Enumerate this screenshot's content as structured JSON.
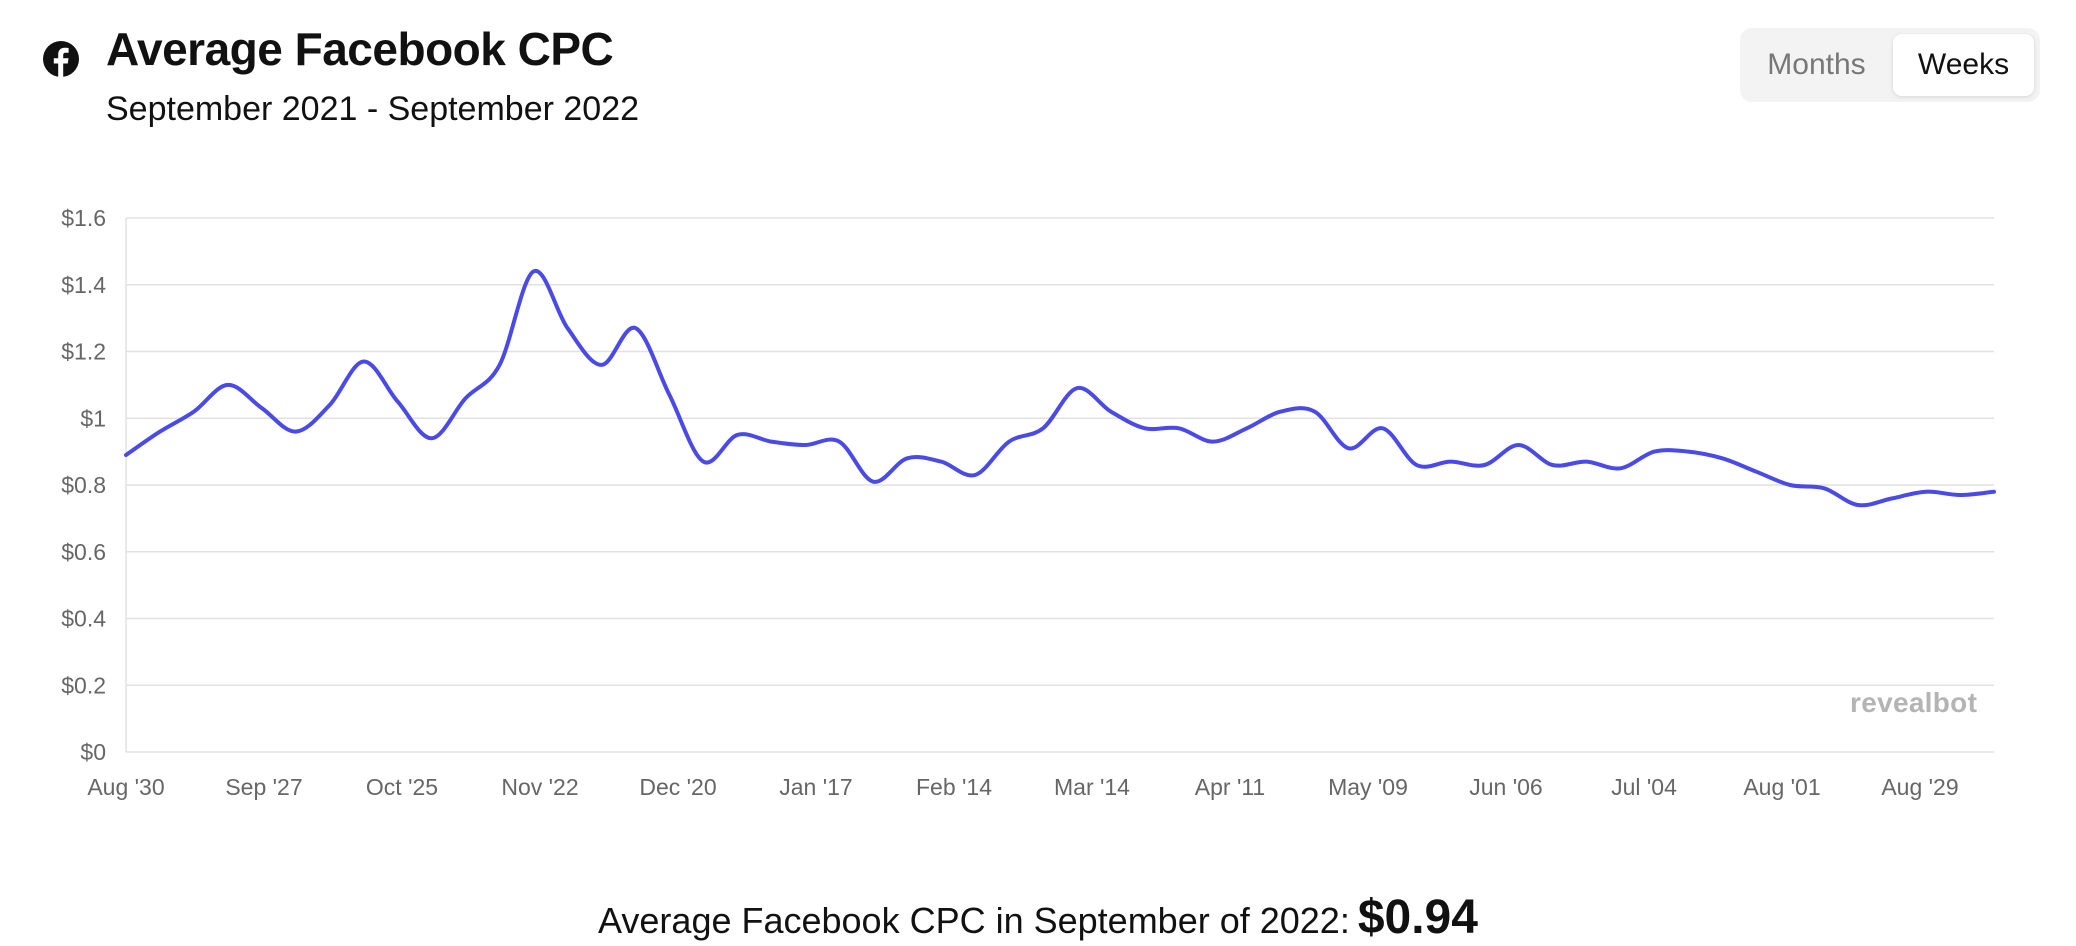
{
  "header": {
    "icon": "facebook-icon",
    "title": "Average Facebook CPC",
    "subtitle": "September 2021 - September 2022"
  },
  "toggle": {
    "options": [
      "Months",
      "Weeks"
    ],
    "selected": "Weeks"
  },
  "watermark": "revealbot",
  "footer": {
    "label": "Average Facebook CPC in September of 2022:",
    "value": "$0.94"
  },
  "colors": {
    "line": "#4a4ae6",
    "grid": "#e2e2e2",
    "axis_text": "#666666"
  },
  "chart_data": {
    "type": "line",
    "title": "",
    "xlabel": "",
    "ylabel": "",
    "ylim": [
      0,
      1.6
    ],
    "y_ticks": [
      "$0",
      "$0.2",
      "$0.4",
      "$0.6",
      "$0.8",
      "$1",
      "$1.2",
      "$1.4",
      "$1.6"
    ],
    "x_ticks": [
      "Aug '30",
      "Sep '27",
      "Oct '25",
      "Nov '22",
      "Dec '20",
      "Jan '17",
      "Feb '14",
      "Mar '14",
      "Apr '11",
      "May '09",
      "Jun '06",
      "Jul '04",
      "Aug '01",
      "Aug '29"
    ],
    "grid": true,
    "series": [
      {
        "values": [
          0.89,
          0.96,
          1.02,
          1.1,
          1.03,
          0.96,
          1.04,
          1.17,
          1.05,
          0.94,
          1.06,
          1.16,
          1.44,
          1.27,
          1.16,
          1.27,
          1.07,
          0.87,
          0.95,
          0.93,
          0.92,
          0.93,
          0.81,
          0.88,
          0.87,
          0.83,
          0.93,
          0.97,
          1.09,
          1.02,
          0.97,
          0.97,
          0.93,
          0.97,
          1.02,
          1.02,
          0.91,
          0.97,
          0.86,
          0.87,
          0.86,
          0.92,
          0.86,
          0.87,
          0.85,
          0.9,
          0.9,
          0.88,
          0.84,
          0.8,
          0.79,
          0.74,
          0.76,
          0.78,
          0.77,
          0.78
        ]
      }
    ]
  }
}
